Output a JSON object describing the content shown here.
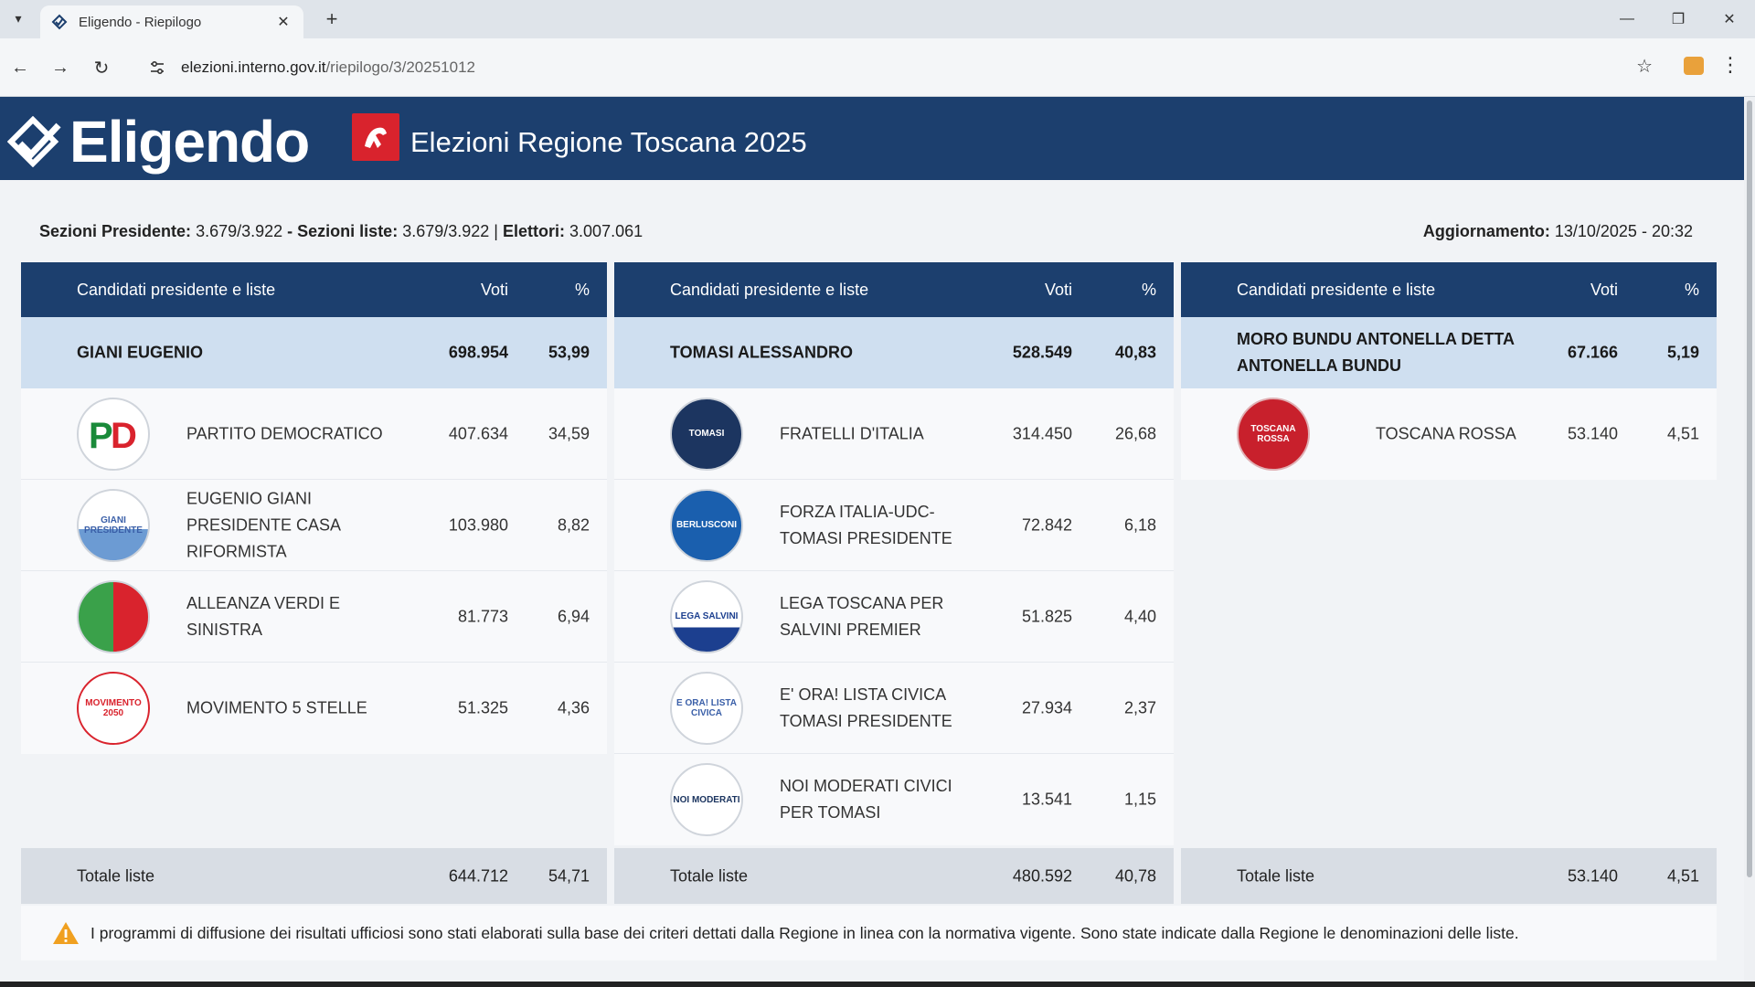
{
  "browser": {
    "tab_title": "Eligendo - Riepilogo",
    "url_domain": "elezioni.interno.gov.it",
    "url_path": "/riepilogo/3/20251012"
  },
  "header": {
    "brand": "Eligendo",
    "title": "Elezioni Regione Toscana 2025"
  },
  "info": {
    "sez_pres_label": "Sezioni Presidente:",
    "sez_pres_value": "3.679/3.922",
    "sez_liste_label": "- Sezioni liste:",
    "sez_liste_value": "3.679/3.922 |",
    "elettori_label": "Elettori:",
    "elettori_value": "3.007.061",
    "update_label": "Aggiornamento:",
    "update_value": "13/10/2025 - 20:32"
  },
  "columns_header": {
    "name": "Candidati presidente e liste",
    "votes": "Voti",
    "pct": "%"
  },
  "candidates": [
    {
      "name": "GIANI EUGENIO",
      "votes": "698.954",
      "pct": "53,99",
      "lists": [
        {
          "name": "PARTITO DEMOCRATICO",
          "votes": "407.634",
          "pct": "34,59",
          "logo": "pd-logo",
          "logo_text": "PD"
        },
        {
          "name": "EUGENIO GIANI PRESIDENTE CASA RIFORMISTA",
          "votes": "103.980",
          "pct": "8,82",
          "logo": "giani-presidente-logo",
          "logo_text": "GIANI PRESIDENTE"
        },
        {
          "name": "ALLEANZA VERDI E SINISTRA",
          "votes": "81.773",
          "pct": "6,94",
          "logo": "avs-logo",
          "logo_text": ""
        },
        {
          "name": "MOVIMENTO 5 STELLE",
          "votes": "51.325",
          "pct": "4,36",
          "logo": "m5s-logo",
          "logo_text": "MOVIMENTO 2050"
        }
      ],
      "total_label": "Totale liste",
      "total_votes": "644.712",
      "total_pct": "54,71"
    },
    {
      "name": "TOMASI ALESSANDRO",
      "votes": "528.549",
      "pct": "40,83",
      "lists": [
        {
          "name": "FRATELLI D'ITALIA",
          "votes": "314.450",
          "pct": "26,68",
          "logo": "fdi-logo",
          "logo_text": "TOMASI"
        },
        {
          "name": "FORZA ITALIA-UDC-TOMASI PRESIDENTE",
          "votes": "72.842",
          "pct": "6,18",
          "logo": "forza-italia-logo",
          "logo_text": "BERLUSCONI"
        },
        {
          "name": "LEGA TOSCANA PER SALVINI PREMIER",
          "votes": "51.825",
          "pct": "4,40",
          "logo": "lega-logo",
          "logo_text": "LEGA SALVINI"
        },
        {
          "name": "E' ORA! LISTA CIVICA TOMASI PRESIDENTE",
          "votes": "27.934",
          "pct": "2,37",
          "logo": "e-ora-logo",
          "logo_text": "E ORA! LISTA CIVICA"
        },
        {
          "name": "NOI MODERATI CIVICI PER TOMASI",
          "votes": "13.541",
          "pct": "1,15",
          "logo": "noi-moderati-logo",
          "logo_text": "NOI MODERATI"
        }
      ],
      "total_label": "Totale liste",
      "total_votes": "480.592",
      "total_pct": "40,78"
    },
    {
      "name": "MORO BUNDU ANTONELLA DETTA ANTONELLA BUNDU",
      "votes": "67.166",
      "pct": "5,19",
      "lists": [
        {
          "name": "TOSCANA ROSSA",
          "votes": "53.140",
          "pct": "4,51",
          "logo": "toscana-rossa-logo",
          "logo_text": "TOSCANA ROSSA"
        }
      ],
      "total_label": "Totale liste",
      "total_votes": "53.140",
      "total_pct": "4,51"
    }
  ],
  "notice": "I programmi di diffusione dei risultati ufficiosi sono stati elaborati sulla base dei criteri dettati dalla Regione in linea con la normativa vigente. Sono state indicate dalla Regione le denominazioni delle liste.",
  "colors": {
    "header_blue": "#1c3f6e",
    "candidate_row": "#cfdff0",
    "total_row": "#d8dde4",
    "warning": "#f0a020"
  }
}
